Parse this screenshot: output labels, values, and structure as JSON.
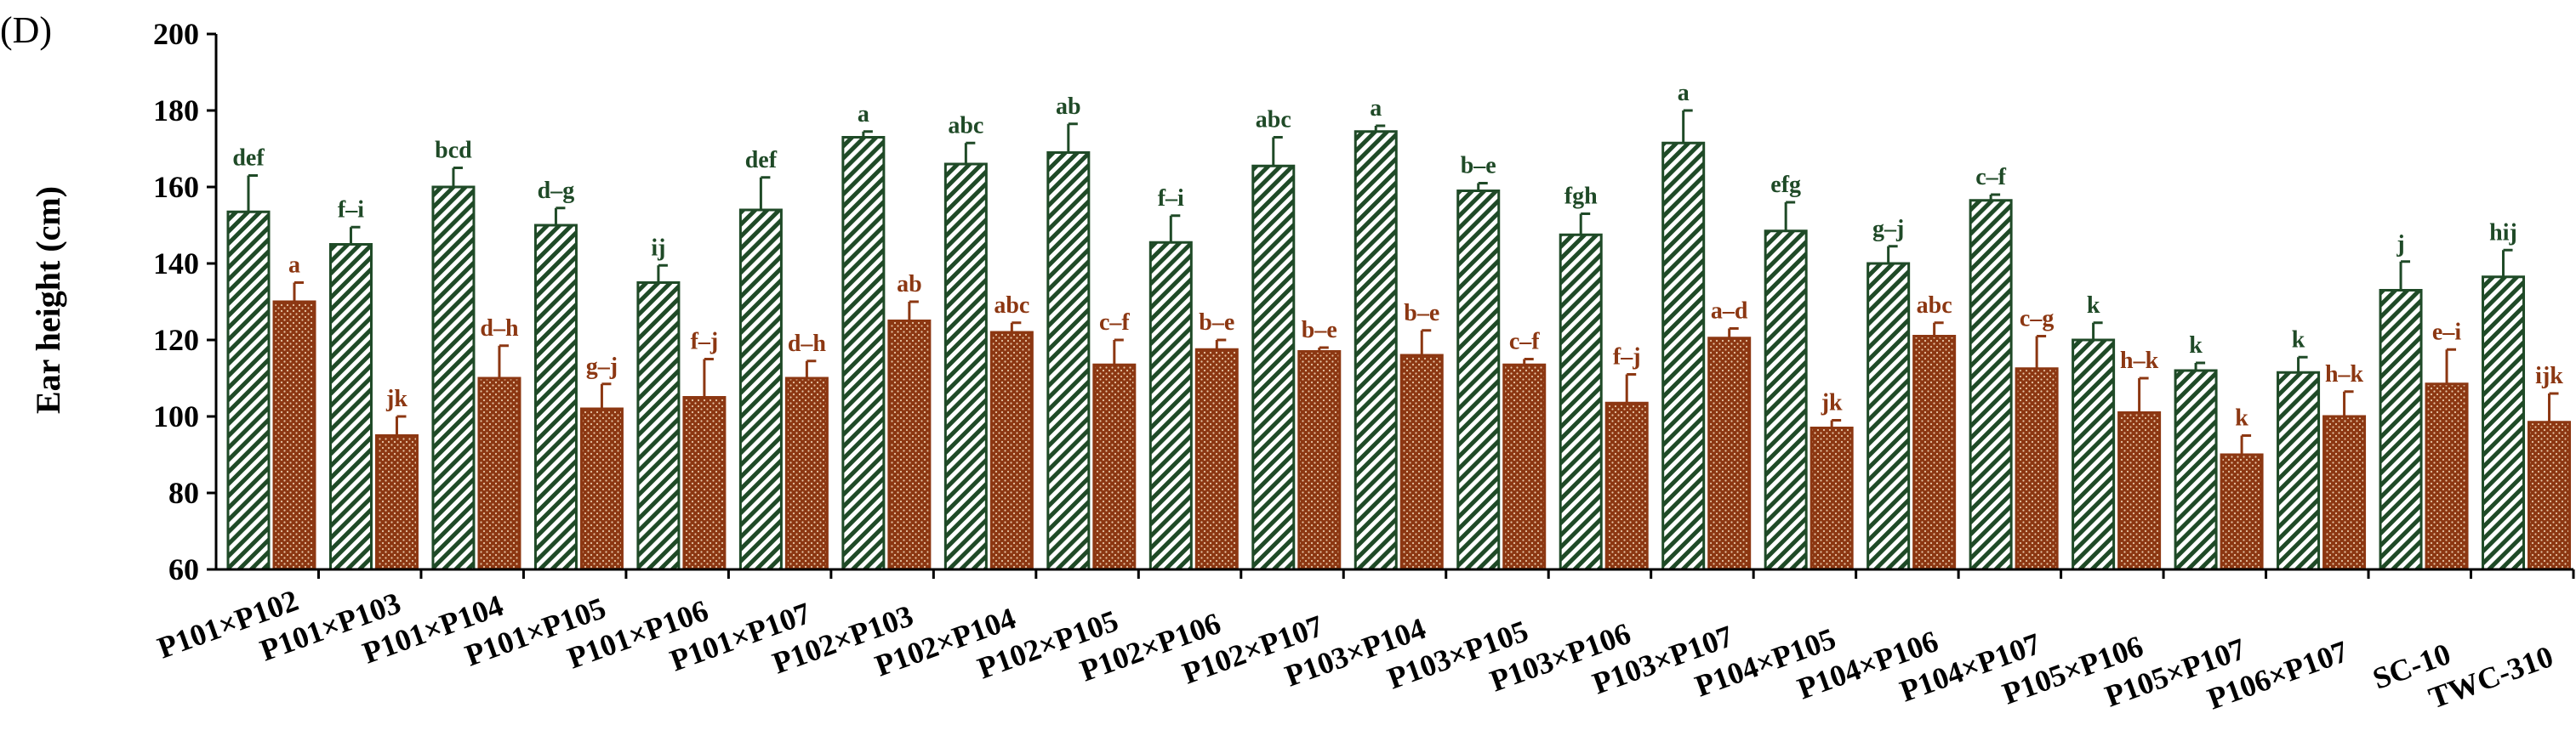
{
  "chart_data": {
    "type": "bar",
    "panel_label": "(D)",
    "ylabel": "Ear height (cm)",
    "xlabel": "",
    "ylim": [
      60,
      200
    ],
    "yticks": [
      60,
      80,
      100,
      120,
      140,
      160,
      180,
      200
    ],
    "grid": false,
    "categories": [
      "P101×P102",
      "P101×P103",
      "P101×P104",
      "P101×P105",
      "P101×P106",
      "P101×P107",
      "P102×P103",
      "P102×P104",
      "P102×P105",
      "P102×P106",
      "P102×P107",
      "P103×P104",
      "P103×P105",
      "P103×P106",
      "P103×P107",
      "P104×P105",
      "P104×P106",
      "P104×P107",
      "P105×P106",
      "P105×P107",
      "P106×P107",
      "SC-10",
      "TWC-310"
    ],
    "series": [
      {
        "color": "#1f4a27",
        "pattern": "diagonal-hatch",
        "values": [
          153.5,
          145,
          160,
          150,
          135,
          154,
          173,
          166,
          169,
          145.5,
          165.5,
          174.5,
          159,
          147.5,
          171.5,
          148.5,
          140,
          156.5,
          120,
          112,
          111.5,
          133,
          136.5
        ],
        "errors": [
          9.5,
          4.5,
          5,
          4.5,
          4.5,
          8.5,
          1.5,
          5.5,
          7.5,
          7,
          7.5,
          1.5,
          2,
          5.5,
          8.5,
          7.5,
          4.5,
          1.5,
          4.5,
          2,
          4,
          7.5,
          7
        ],
        "letters": [
          "def",
          "f–i",
          "bcd",
          "d–g",
          "ij",
          "def",
          "a",
          "abc",
          "ab",
          "f–i",
          "abc",
          "a",
          "b–e",
          "fgh",
          "a",
          "efg",
          "g–j",
          "c–f",
          "k",
          "k",
          "k",
          "j",
          "hij"
        ]
      },
      {
        "color": "#8c3712",
        "pattern": "dotted",
        "values": [
          130,
          95,
          110,
          102,
          105,
          110,
          125,
          122,
          113.5,
          117.5,
          117,
          116,
          113.5,
          103.5,
          120.5,
          97,
          121,
          112.5,
          101,
          90,
          100,
          108.5,
          98.5
        ],
        "errors": [
          5,
          5,
          8.5,
          6.5,
          10,
          4.5,
          5,
          2.5,
          6.5,
          2.5,
          1,
          6.5,
          1.5,
          7.5,
          2.5,
          2,
          3.5,
          8.5,
          9,
          5,
          6.5,
          9,
          7.5
        ],
        "letters": [
          "a",
          "jk",
          "d–h",
          "g–j",
          "f–j",
          "d–h",
          "ab",
          "abc",
          "c–f",
          "b–e",
          "b–e",
          "b–e",
          "c–f",
          "f–j",
          "a–d",
          "jk",
          "abc",
          "c–g",
          "h–k",
          "k",
          "h–k",
          "e–i",
          "ijk"
        ]
      }
    ]
  }
}
